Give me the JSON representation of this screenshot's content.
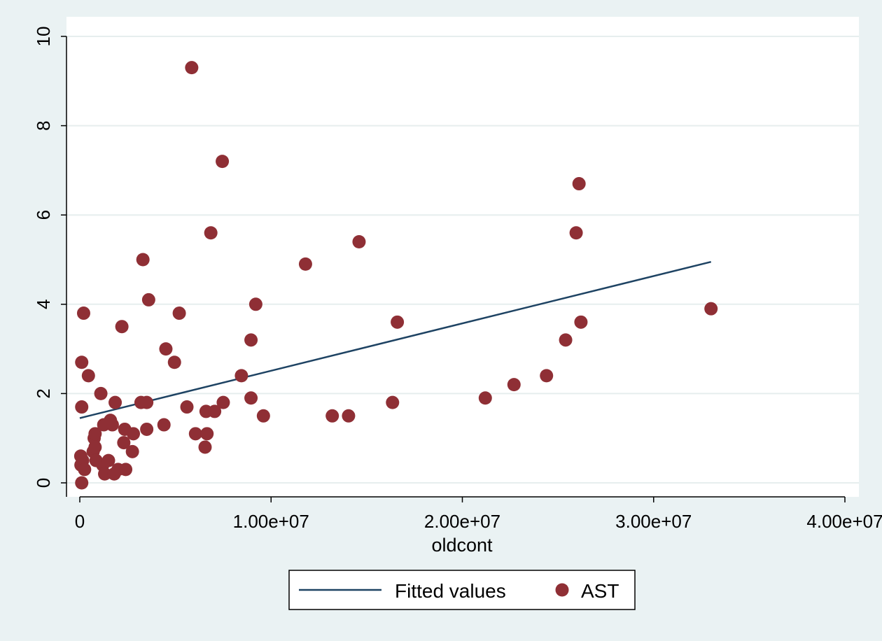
{
  "chart_data": {
    "type": "scatter",
    "xlabel": "oldcont",
    "ylabel": "",
    "xlim": [
      0,
      40000000
    ],
    "ylim": [
      0,
      10
    ],
    "xticks": [
      {
        "value": 0,
        "label": "0"
      },
      {
        "value": 10000000,
        "label": "1.00e+07"
      },
      {
        "value": 20000000,
        "label": "2.00e+07"
      },
      {
        "value": 30000000,
        "label": "3.00e+07"
      },
      {
        "value": 40000000,
        "label": "4.00e+07"
      }
    ],
    "yticks": [
      {
        "value": 0,
        "label": "0"
      },
      {
        "value": 2,
        "label": "2"
      },
      {
        "value": 4,
        "label": "4"
      },
      {
        "value": 6,
        "label": "6"
      },
      {
        "value": 8,
        "label": "8"
      },
      {
        "value": 10,
        "label": "10"
      }
    ],
    "grid": "horizontal",
    "legend_position": "bottom",
    "series": [
      {
        "name": "Fitted values",
        "kind": "line",
        "color": "#1e4363",
        "points": [
          [
            0,
            1.45
          ],
          [
            33000000,
            4.95
          ]
        ]
      },
      {
        "name": "AST",
        "kind": "scatter",
        "color": "#8f2f35",
        "points": [
          [
            50000,
            0.6
          ],
          [
            60000,
            0.4
          ],
          [
            100000,
            0.0
          ],
          [
            100000,
            1.7
          ],
          [
            100000,
            2.7
          ],
          [
            150000,
            0.5
          ],
          [
            200000,
            3.8
          ],
          [
            250000,
            0.3
          ],
          [
            450000,
            2.4
          ],
          [
            700000,
            0.7
          ],
          [
            750000,
            1.0
          ],
          [
            800000,
            1.1
          ],
          [
            800000,
            0.8
          ],
          [
            850000,
            0.5
          ],
          [
            1100000,
            2.0
          ],
          [
            1200000,
            0.4
          ],
          [
            1250000,
            1.3
          ],
          [
            1300000,
            0.2
          ],
          [
            1500000,
            0.5
          ],
          [
            1600000,
            1.4
          ],
          [
            1700000,
            1.3
          ],
          [
            1800000,
            0.2
          ],
          [
            1850000,
            1.8
          ],
          [
            2000000,
            0.3
          ],
          [
            2200000,
            3.5
          ],
          [
            2300000,
            0.9
          ],
          [
            2350000,
            1.2
          ],
          [
            2400000,
            0.3
          ],
          [
            2750000,
            0.7
          ],
          [
            2800000,
            1.1
          ],
          [
            3200000,
            1.8
          ],
          [
            3300000,
            5.0
          ],
          [
            3500000,
            1.8
          ],
          [
            3500000,
            1.2
          ],
          [
            3600000,
            4.1
          ],
          [
            4400000,
            1.3
          ],
          [
            4500000,
            3.0
          ],
          [
            4950000,
            2.7
          ],
          [
            5200000,
            3.8
          ],
          [
            5600000,
            1.7
          ],
          [
            5850000,
            9.3
          ],
          [
            6050000,
            1.1
          ],
          [
            6550000,
            0.8
          ],
          [
            6600000,
            1.6
          ],
          [
            6650000,
            1.1
          ],
          [
            6850000,
            5.6
          ],
          [
            7050000,
            1.6
          ],
          [
            7450000,
            7.2
          ],
          [
            7500000,
            1.8
          ],
          [
            8450000,
            2.4
          ],
          [
            8950000,
            1.9
          ],
          [
            8950000,
            3.2
          ],
          [
            9200000,
            4.0
          ],
          [
            9600000,
            1.5
          ],
          [
            11800000,
            4.9
          ],
          [
            13200000,
            1.5
          ],
          [
            14050000,
            1.5
          ],
          [
            14600000,
            5.4
          ],
          [
            16350000,
            1.8
          ],
          [
            16600000,
            3.6
          ],
          [
            21200000,
            1.9
          ],
          [
            22700000,
            2.2
          ],
          [
            24400000,
            2.4
          ],
          [
            25400000,
            3.2
          ],
          [
            25950000,
            5.6
          ],
          [
            26100000,
            6.7
          ],
          [
            26200000,
            3.6
          ],
          [
            33000000,
            3.9
          ]
        ]
      }
    ]
  }
}
